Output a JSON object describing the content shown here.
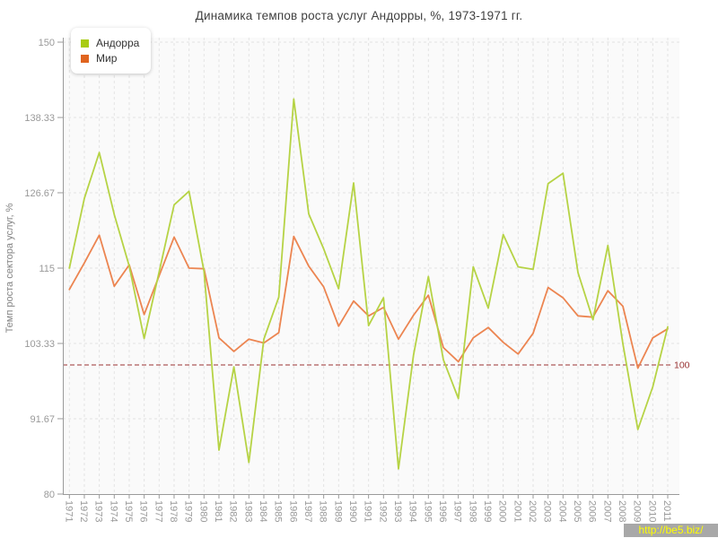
{
  "page": {
    "title": "Динамика темпов роста услуг Андорры, %, 1973-1971 гг."
  },
  "watermark": {
    "text": "http://be5.biz/"
  },
  "legend": {
    "items": [
      {
        "id": "andorra",
        "label": "Андорра"
      },
      {
        "id": "mir",
        "label": "Мир"
      }
    ]
  },
  "axes": {
    "y_label": "Темп роста сектора услуг, %",
    "y_ticks": [
      150,
      138.33,
      126.67,
      115,
      103.33,
      91.67,
      80
    ],
    "y_tick_labels": [
      "150",
      "138.33",
      "126.67",
      "115",
      "103.33",
      "91.67",
      "80"
    ],
    "x_tick_labels": [
      "1971",
      "1972",
      "1973",
      "1974",
      "1975",
      "1976",
      "1977",
      "1978",
      "1979",
      "1980",
      "1981",
      "1982",
      "1983",
      "1984",
      "1985",
      "1986",
      "1987",
      "1988",
      "1989",
      "1990",
      "1991",
      "1992",
      "1993",
      "1994",
      "1995",
      "1996",
      "1997",
      "1998",
      "1999",
      "2000",
      "2001",
      "2002",
      "2003",
      "2004",
      "2005",
      "2006",
      "2007",
      "2008",
      "2009",
      "2010",
      "2011"
    ]
  },
  "reference_line": {
    "value": 100,
    "label": "100",
    "color": "#993333"
  },
  "colors": {
    "grid": "#e3e3e3",
    "axis": "#9a9a9a",
    "tick_text": "#999999",
    "plot_bg": "#fafafa",
    "title_text": "#3f3f3f"
  },
  "chart_data": {
    "type": "line",
    "title": "Динамика темпов роста услуг Андорры, %, 1973-1971 гг.",
    "xlabel": "",
    "ylabel": "Темп роста сектора услуг, %",
    "ylim": [
      80,
      150
    ],
    "yticks": [
      80,
      91.67,
      103.33,
      115,
      126.67,
      138.33,
      150
    ],
    "grid": true,
    "legend_position": "top-left",
    "reference_line": 100,
    "x": [
      1971,
      1972,
      1973,
      1974,
      1975,
      1976,
      1977,
      1978,
      1979,
      1980,
      1981,
      1982,
      1983,
      1984,
      1985,
      1986,
      1987,
      1988,
      1989,
      1990,
      1991,
      1992,
      1993,
      1994,
      1995,
      1996,
      1997,
      1998,
      1999,
      2000,
      2001,
      2002,
      2003,
      2004,
      2005,
      2006,
      2007,
      2008,
      2009,
      2010,
      2011
    ],
    "series": [
      {
        "id": "andorra",
        "name": "Андорра",
        "color": "#b6d345",
        "legend_color": "#a9cc13",
        "values": [
          115.0,
          125.8,
          132.9,
          123.3,
          115.3,
          104.1,
          114.4,
          124.8,
          126.9,
          114.5,
          86.8,
          99.7,
          84.9,
          104.0,
          110.5,
          141.2,
          123.4,
          118.0,
          111.8,
          128.2,
          106.1,
          110.4,
          83.9,
          101.5,
          113.7,
          100.8,
          94.8,
          115.2,
          108.8,
          120.2,
          115.2,
          114.8,
          128.1,
          129.7,
          114.3,
          107.0,
          118.5,
          103.3,
          90.0,
          96.6,
          105.9
        ]
      },
      {
        "id": "mir",
        "name": "Мир",
        "color": "#ec8551",
        "legend_color": "#e0641f",
        "values": [
          111.7,
          115.8,
          120.1,
          112.2,
          115.5,
          107.8,
          113.8,
          119.8,
          115.0,
          114.9,
          104.2,
          102.1,
          104.0,
          103.4,
          105.0,
          119.9,
          115.3,
          112.1,
          106.0,
          109.9,
          107.6,
          108.9,
          104.0,
          107.7,
          110.8,
          102.7,
          100.5,
          104.2,
          105.8,
          103.5,
          101.7,
          104.9,
          112.0,
          110.4,
          107.6,
          107.4,
          111.5,
          109.1,
          99.5,
          104.2,
          105.6
        ]
      }
    ]
  }
}
